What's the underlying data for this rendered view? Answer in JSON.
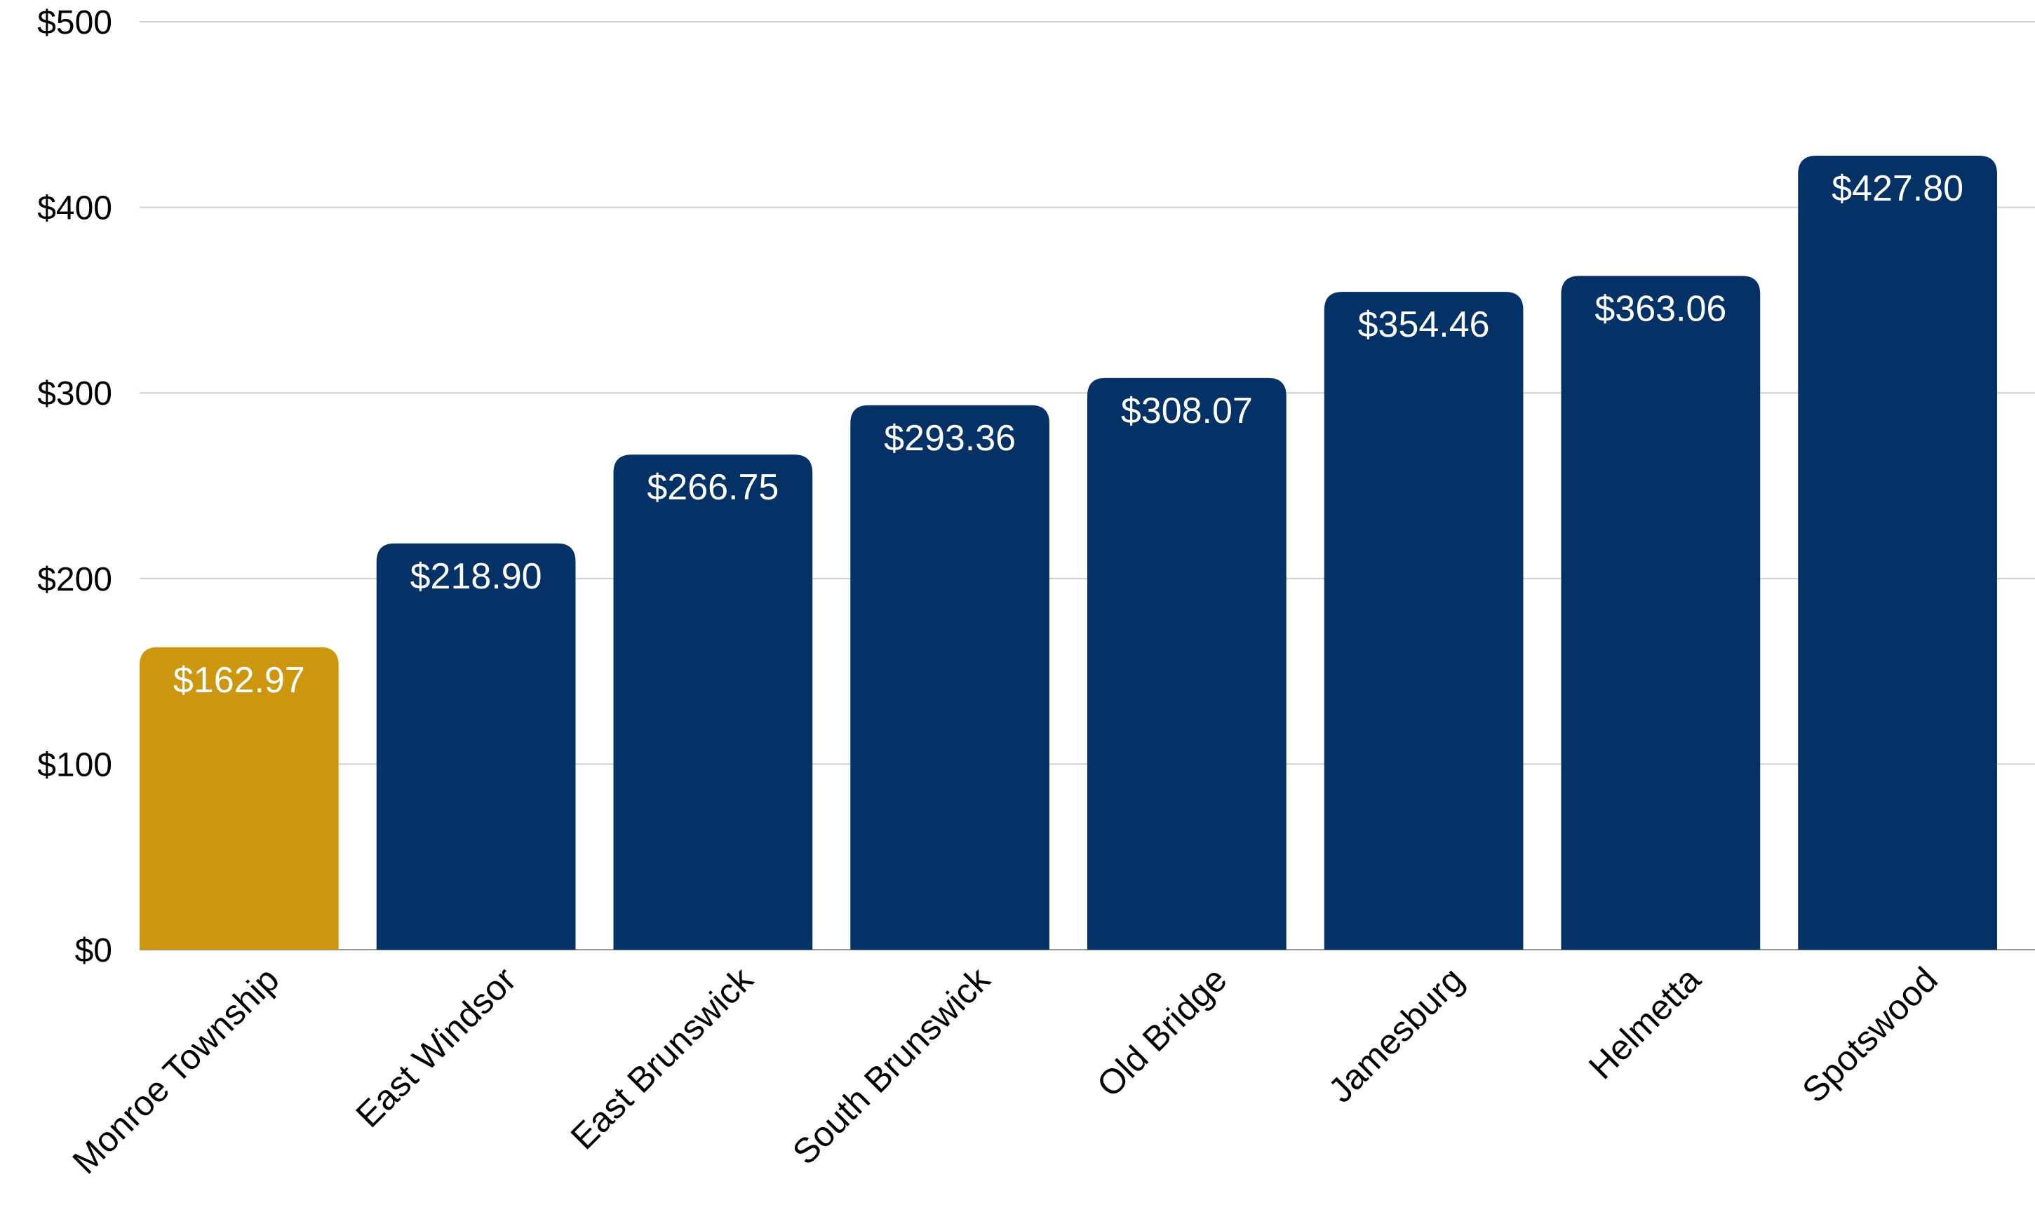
{
  "chart_data": {
    "type": "bar",
    "categories": [
      "Monroe Township",
      "East Windsor",
      "East Brunswick",
      "South Brunswick",
      "Old Bridge",
      "Jamesburg",
      "Helmetta",
      "Spotswood"
    ],
    "values": [
      162.97,
      218.9,
      266.75,
      293.36,
      308.07,
      354.46,
      363.06,
      427.8
    ],
    "data_labels": [
      "$162.97",
      "$218.90",
      "$266.75",
      "$293.36",
      "$308.07",
      "$354.46",
      "$363.06",
      "$427.80"
    ],
    "ylim": [
      0,
      500
    ],
    "yticks": [
      0,
      100,
      200,
      300,
      400,
      500
    ],
    "ytick_labels": [
      "$0",
      "$100",
      "$200",
      "$300",
      "$400",
      "$500"
    ],
    "title": "",
    "xlabel": "",
    "ylabel": "",
    "grid": true,
    "legend": "none",
    "colors": {
      "highlight": "#CC960E",
      "bar": "#053266",
      "gridline": "#cfcfcf",
      "data_label": "#ffffff"
    },
    "highlight_index": 0
  }
}
